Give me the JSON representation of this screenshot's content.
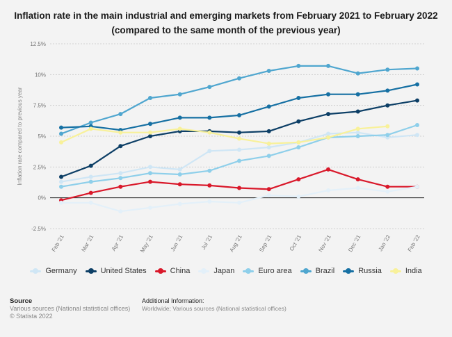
{
  "title": "Inflation rate in the main industrial and emerging markets from February 2021 to February 2022 (compared to the same month of the previous year)",
  "source_heading": "Source",
  "source_lines": [
    "Various sources (National statistical offices)",
    "© Statista 2022"
  ],
  "additional_heading": "Additional Information:",
  "additional_text": "Worldwide; Various sources (National statistical offices)",
  "chart_data": {
    "type": "line",
    "title": "Inflation rate in the main industrial and emerging markets from February 2021 to February 2022 (compared to the same month of the previous year)",
    "xlabel": "",
    "ylabel": "Inflation rate compared to previous year",
    "categories": [
      "Feb '21",
      "Mar '21",
      "Apr '21",
      "May '21",
      "Jun '21",
      "Jul '21",
      "Aug '21",
      "Sep '21",
      "Oct '21",
      "Nov '21",
      "Dec '21",
      "Jan '22",
      "Feb '22"
    ],
    "ylim": [
      -2.5,
      12.5
    ],
    "yticks": [
      -2.5,
      0,
      2.5,
      5,
      7.5,
      10,
      12.5
    ],
    "ytick_labels": [
      "-2.5%",
      "0%",
      "2.5%",
      "5%",
      "7.5%",
      "10%",
      "12.5%"
    ],
    "grid": true,
    "legend_position": "bottom",
    "series": [
      {
        "name": "Germany",
        "color": "#cfe6f5",
        "values": [
          1.3,
          1.7,
          2.0,
          2.5,
          2.3,
          3.8,
          3.9,
          4.1,
          4.5,
          5.2,
          5.3,
          4.9,
          5.1
        ]
      },
      {
        "name": "United States",
        "color": "#0d3f66",
        "values": [
          1.7,
          2.6,
          4.2,
          5.0,
          5.4,
          5.4,
          5.3,
          5.4,
          6.2,
          6.8,
          7.0,
          7.5,
          7.9
        ]
      },
      {
        "name": "China",
        "color": "#d9182a",
        "values": [
          -0.2,
          0.4,
          0.9,
          1.3,
          1.1,
          1.0,
          0.8,
          0.7,
          1.5,
          2.3,
          1.5,
          0.9,
          0.9
        ]
      },
      {
        "name": "Japan",
        "color": "#e3f0f9",
        "values": [
          -0.4,
          -0.4,
          -1.1,
          -0.8,
          -0.5,
          -0.3,
          -0.4,
          0.2,
          0.1,
          0.6,
          0.8,
          0.5,
          0.9
        ]
      },
      {
        "name": "Euro area",
        "color": "#8ecfea",
        "values": [
          0.9,
          1.3,
          1.6,
          2.0,
          1.9,
          2.2,
          3.0,
          3.4,
          4.1,
          4.9,
          5.0,
          5.1,
          5.9
        ]
      },
      {
        "name": "Brazil",
        "color": "#4fa6cf",
        "values": [
          5.2,
          6.1,
          6.8,
          8.1,
          8.4,
          9.0,
          9.7,
          10.3,
          10.7,
          10.7,
          10.1,
          10.4,
          10.5
        ]
      },
      {
        "name": "Russia",
        "color": "#1670a3",
        "values": [
          5.7,
          5.8,
          5.5,
          6.0,
          6.5,
          6.5,
          6.7,
          7.4,
          8.1,
          8.4,
          8.4,
          8.7,
          9.2
        ]
      },
      {
        "name": "India",
        "color": "#f8f19a",
        "values": [
          4.5,
          5.6,
          5.3,
          5.3,
          5.6,
          5.3,
          4.8,
          4.4,
          4.5,
          4.9,
          5.6,
          5.8,
          null
        ]
      }
    ]
  }
}
